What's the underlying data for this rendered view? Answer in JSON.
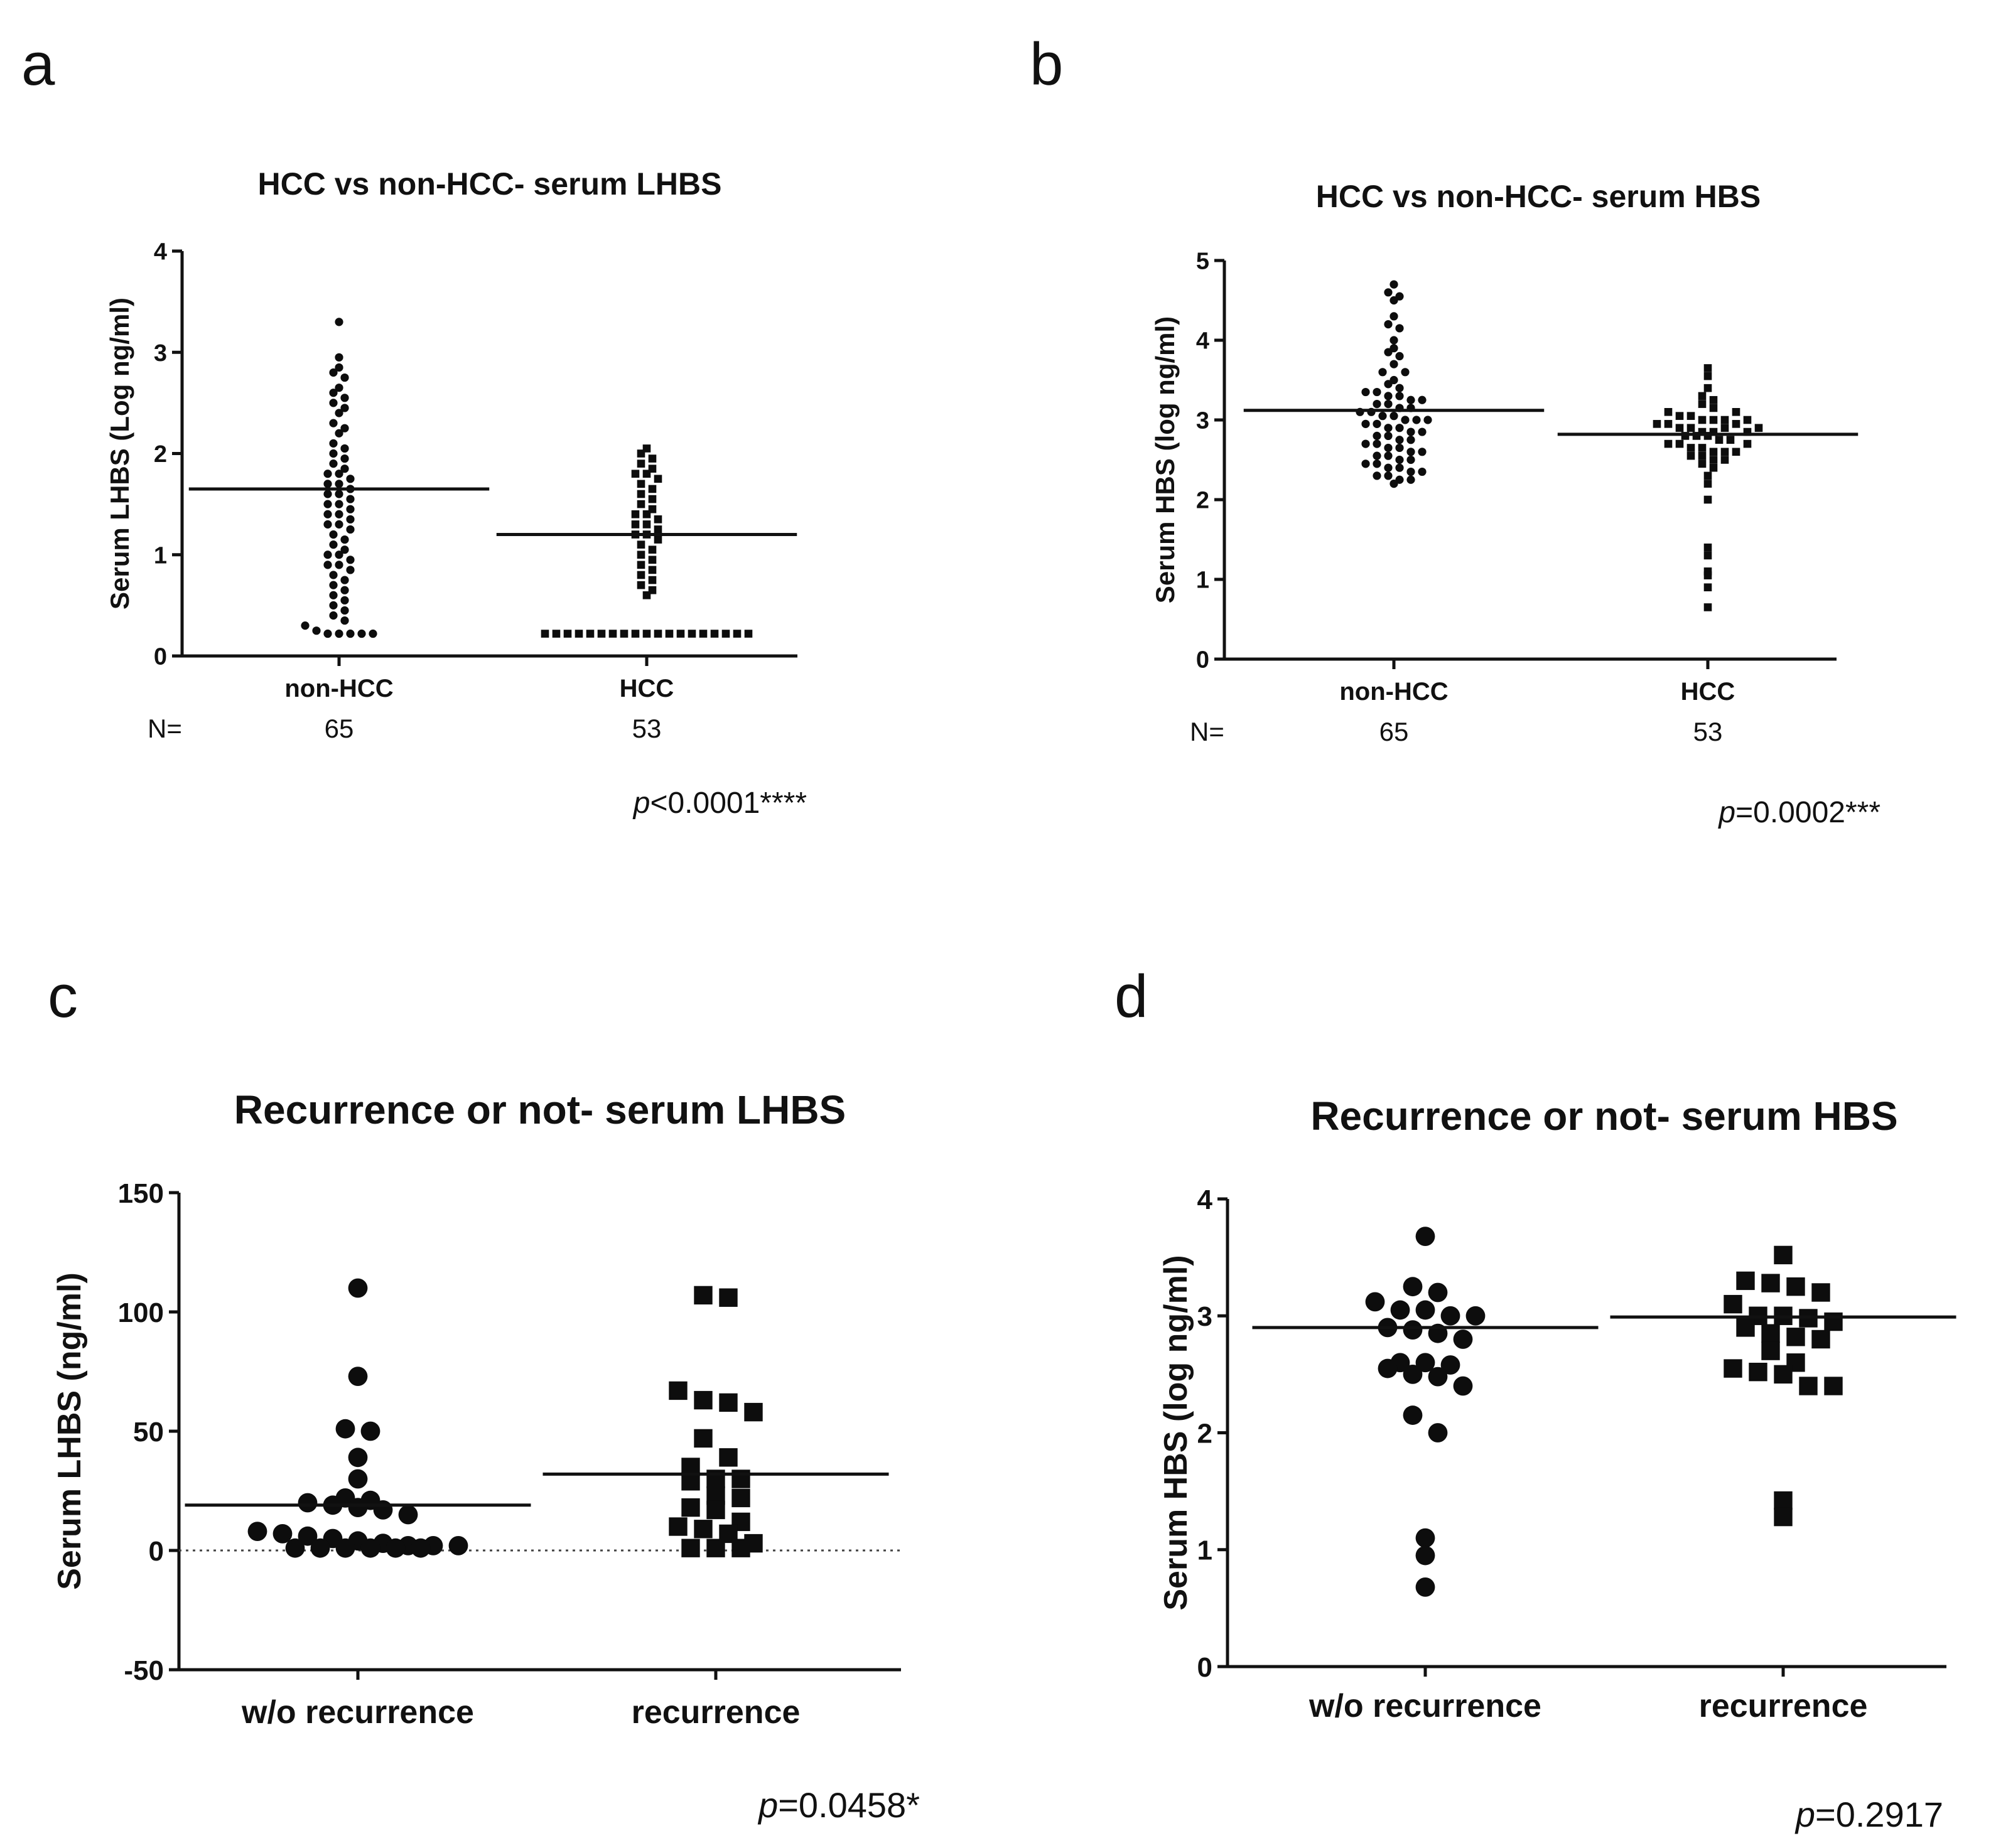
{
  "chart_data": [
    {
      "panel": "a",
      "type": "scatter",
      "title": "HCC vs non-HCC- serum LHBS",
      "xlabel": "",
      "ylabel": "Serum LHBS (Log ng/ml)",
      "ylim": [
        0,
        4
      ],
      "yticks": [
        0,
        1,
        2,
        3,
        4
      ],
      "categories": [
        "non-HCC",
        "HCC"
      ],
      "n_label": "N=",
      "n_values": [
        "65",
        "53"
      ],
      "pvalue": {
        "p": "p",
        "rest": "<0.0001****"
      },
      "marker": [
        "circle",
        "square"
      ],
      "means": [
        1.65,
        1.2
      ],
      "series": [
        {
          "name": "non-HCC",
          "values": [
            3.3,
            2.95,
            2.85,
            2.8,
            2.75,
            2.65,
            2.6,
            2.55,
            2.5,
            2.45,
            2.4,
            2.3,
            2.25,
            2.2,
            2.1,
            2.05,
            2.0,
            1.95,
            1.9,
            1.85,
            1.8,
            1.8,
            1.75,
            1.7,
            1.7,
            1.65,
            1.6,
            1.6,
            1.55,
            1.5,
            1.5,
            1.45,
            1.4,
            1.4,
            1.35,
            1.3,
            1.3,
            1.25,
            1.2,
            1.15,
            1.1,
            1.05,
            1.0,
            1.0,
            0.95,
            0.9,
            0.9,
            0.85,
            0.8,
            0.75,
            0.7,
            0.65,
            0.6,
            0.55,
            0.5,
            0.45,
            0.4,
            0.35,
            0.3,
            0.25,
            0.22,
            0.22,
            0.22,
            0.22,
            0.22
          ]
        },
        {
          "name": "HCC",
          "values": [
            2.05,
            2.0,
            1.95,
            1.9,
            1.85,
            1.8,
            1.8,
            1.75,
            1.7,
            1.65,
            1.6,
            1.55,
            1.5,
            1.45,
            1.4,
            1.4,
            1.35,
            1.3,
            1.3,
            1.25,
            1.2,
            1.2,
            1.15,
            1.1,
            1.05,
            1.0,
            0.95,
            0.9,
            0.85,
            0.8,
            0.75,
            0.7,
            0.65,
            0.6,
            0.22,
            0.22,
            0.22,
            0.22,
            0.22,
            0.22,
            0.22,
            0.22,
            0.22,
            0.22,
            0.22,
            0.22,
            0.22,
            0.22,
            0.22,
            0.22,
            0.22,
            0.22,
            0.22
          ]
        }
      ]
    },
    {
      "panel": "b",
      "type": "scatter",
      "title": "HCC vs non-HCC- serum HBS",
      "xlabel": "",
      "ylabel": "Serum HBS (log ng/ml)",
      "ylim": [
        0,
        5
      ],
      "yticks": [
        0,
        1,
        2,
        3,
        4,
        5
      ],
      "categories": [
        "non-HCC",
        "HCC"
      ],
      "n_label": "N=",
      "n_values": [
        "65",
        "53"
      ],
      "pvalue": {
        "p": "p",
        "rest": "=0.0002***"
      },
      "marker": [
        "circle",
        "square"
      ],
      "means": [
        3.12,
        2.82
      ],
      "series": [
        {
          "name": "non-HCC",
          "values": [
            4.7,
            4.6,
            4.55,
            4.5,
            4.2,
            4.15,
            4.0,
            3.85,
            3.8,
            3.7,
            3.6,
            3.5,
            3.45,
            3.4,
            3.35,
            3.35,
            3.3,
            3.3,
            3.25,
            3.25,
            3.2,
            3.2,
            3.15,
            3.15,
            3.1,
            3.1,
            3.05,
            3.05,
            3.0,
            3.0,
            3.0,
            2.95,
            2.95,
            2.9,
            2.9,
            2.85,
            2.85,
            2.8,
            2.8,
            2.75,
            2.75,
            2.7,
            2.7,
            2.65,
            2.65,
            2.6,
            2.6,
            2.55,
            2.55,
            2.5,
            2.5,
            2.45,
            2.45,
            2.4,
            2.4,
            2.35,
            2.35,
            2.3,
            2.3,
            2.25,
            2.25,
            2.2,
            3.6,
            3.9,
            4.3
          ]
        },
        {
          "name": "HCC",
          "values": [
            3.65,
            3.55,
            3.4,
            3.3,
            3.25,
            3.2,
            3.15,
            3.1,
            3.05,
            3.05,
            3.0,
            3.0,
            3.0,
            2.95,
            2.95,
            2.9,
            2.9,
            2.85,
            2.85,
            2.8,
            2.8,
            2.8,
            2.75,
            2.75,
            2.7,
            2.7,
            2.65,
            2.65,
            2.6,
            2.6,
            2.55,
            2.55,
            2.5,
            2.5,
            2.45,
            2.4,
            2.3,
            2.2,
            2.0,
            1.4,
            1.3,
            1.1,
            1.05,
            0.9,
            0.65,
            2.9,
            3.1,
            2.6,
            2.95,
            3.0,
            2.7,
            2.85,
            2.9
          ]
        }
      ]
    },
    {
      "panel": "c",
      "type": "scatter",
      "title": "Recurrence or not- serum LHBS",
      "xlabel": "",
      "ylabel": "Serum LHBS (ng/ml)",
      "ylim": [
        -50,
        150
      ],
      "yticks": [
        -50,
        0,
        50,
        100,
        150
      ],
      "categories": [
        "w/o recurrence",
        "recurrence"
      ],
      "pvalue": {
        "p": "p",
        "rest": "=0.0458*"
      },
      "marker": [
        "circle",
        "square"
      ],
      "means": [
        19,
        32
      ],
      "zero_line": true,
      "series": [
        {
          "name": "w/o recurrence",
          "values": [
            110,
            73,
            51,
            50,
            39,
            30,
            22,
            21,
            20,
            19,
            18,
            17,
            15,
            8,
            7,
            6,
            5,
            4,
            3,
            2,
            2,
            2,
            1,
            1,
            1,
            1,
            1,
            1
          ]
        },
        {
          "name": "recurrence",
          "values": [
            107,
            106,
            67,
            63,
            62,
            58,
            47,
            39,
            35,
            30,
            30,
            29,
            23,
            22,
            18,
            17,
            12,
            10,
            9,
            7,
            3,
            1,
            1,
            1
          ]
        }
      ]
    },
    {
      "panel": "d",
      "type": "scatter",
      "title": "Recurrence or not- serum HBS",
      "xlabel": "",
      "ylabel": "Serum HBS (log ng/ml)",
      "ylim": [
        0,
        4
      ],
      "yticks": [
        0,
        1,
        2,
        3,
        4
      ],
      "categories": [
        "w/o recurrence",
        "recurrence"
      ],
      "pvalue": {
        "p": "p",
        "rest": "=0.2917"
      },
      "marker": [
        "circle",
        "square"
      ],
      "means": [
        2.9,
        2.99
      ],
      "series": [
        {
          "name": "w/o recurrence",
          "values": [
            3.68,
            3.25,
            3.2,
            3.12,
            3.05,
            3.05,
            3.0,
            3.0,
            2.9,
            2.88,
            2.85,
            2.8,
            2.6,
            2.6,
            2.58,
            2.55,
            2.5,
            2.48,
            2.4,
            2.15,
            2.0,
            1.1,
            0.95,
            0.68
          ]
        },
        {
          "name": "recurrence",
          "values": [
            3.52,
            3.3,
            3.28,
            3.25,
            3.2,
            3.1,
            3.0,
            3.0,
            2.98,
            2.95,
            2.9,
            2.85,
            2.82,
            2.8,
            2.7,
            2.6,
            2.55,
            2.52,
            2.5,
            2.4,
            2.4,
            1.42,
            1.28
          ]
        }
      ]
    }
  ]
}
